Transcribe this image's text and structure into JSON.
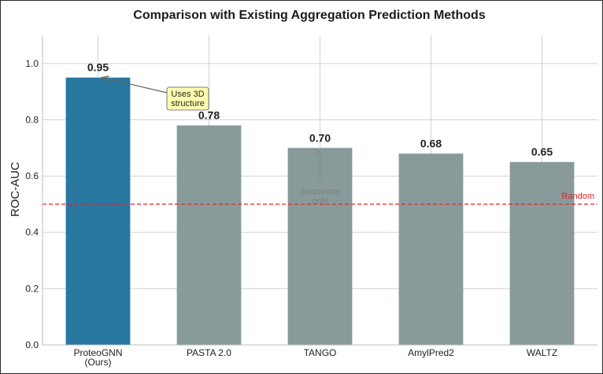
{
  "chart_data": {
    "type": "bar",
    "title": "Comparison with Existing Aggregation Prediction Methods",
    "xlabel": "",
    "ylabel": "ROC-AUC",
    "ylim": [
      0,
      1.1
    ],
    "yticks": [
      0.0,
      0.2,
      0.4,
      0.6,
      0.8,
      1.0
    ],
    "ytick_labels": [
      "0.0",
      "0.2",
      "0.4",
      "0.6",
      "0.8",
      "1.0"
    ],
    "grid": true,
    "categories": [
      [
        "ProteoGNN",
        "(Ours)"
      ],
      [
        "PASTA 2.0"
      ],
      [
        "TANGO"
      ],
      [
        "AmylPred2"
      ],
      [
        "WALTZ"
      ]
    ],
    "values": [
      0.95,
      0.78,
      0.7,
      0.68,
      0.65
    ],
    "value_labels": [
      "0.95",
      "0.78",
      "0.70",
      "0.68",
      "0.65"
    ],
    "bar_colors": [
      "#2878a0",
      "#899a9b",
      "#899a9b",
      "#899a9b",
      "#899a9b"
    ],
    "reference_line": {
      "value": 0.5,
      "label": "Random",
      "color": "#e52222",
      "style": "dashed"
    },
    "annotations": [
      {
        "lines": [
          "Uses 3D",
          "structure"
        ],
        "target_category_index": 0,
        "target_value": 0.95,
        "style": "callout-box",
        "box_color": "#ffffb0"
      },
      {
        "lines": [
          "Sequence",
          "only"
        ],
        "target_category_index": 2,
        "target_value": 0.7,
        "style": "muted-arrow"
      }
    ]
  }
}
